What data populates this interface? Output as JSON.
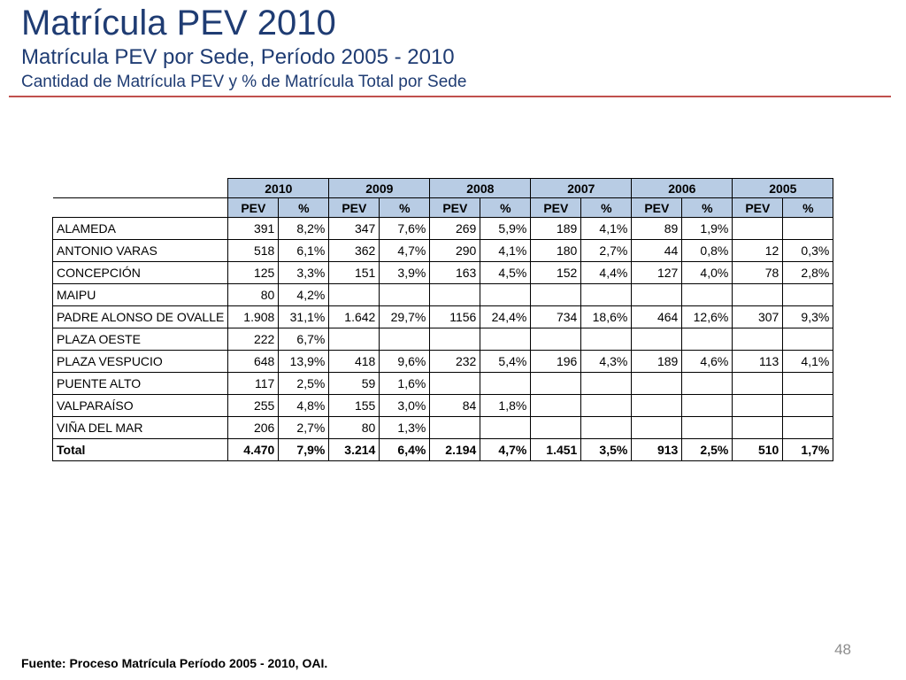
{
  "header": {
    "title": "Matrícula PEV 2010",
    "subtitle": "Matrícula PEV por Sede, Período 2005 - 2010",
    "subtitle2": "Cantidad de Matrícula PEV y % de Matrícula Total por Sede"
  },
  "table": {
    "years": [
      "2010",
      "2009",
      "2008",
      "2007",
      "2006",
      "2005"
    ],
    "subheaders": [
      "PEV",
      "%",
      "PEV",
      "%",
      "PEV",
      "%",
      "PEV",
      "%",
      "PEV",
      "%",
      "PEV",
      "%"
    ],
    "rows": [
      [
        "ALAMEDA",
        "391",
        "8,2%",
        "347",
        "7,6%",
        "269",
        "5,9%",
        "189",
        "4,1%",
        "89",
        "1,9%",
        "",
        ""
      ],
      [
        "ANTONIO VARAS",
        "518",
        "6,1%",
        "362",
        "4,7%",
        "290",
        "4,1%",
        "180",
        "2,7%",
        "44",
        "0,8%",
        "12",
        "0,3%"
      ],
      [
        "CONCEPCIÓN",
        "125",
        "3,3%",
        "151",
        "3,9%",
        "163",
        "4,5%",
        "152",
        "4,4%",
        "127",
        "4,0%",
        "78",
        "2,8%"
      ],
      [
        "MAIPU",
        "80",
        "4,2%",
        "",
        "",
        "",
        "",
        "",
        "",
        "",
        "",
        "",
        ""
      ],
      [
        "PADRE ALONSO DE OVALLE",
        "1.908",
        "31,1%",
        "1.642",
        "29,7%",
        "1156",
        "24,4%",
        "734",
        "18,6%",
        "464",
        "12,6%",
        "307",
        "9,3%"
      ],
      [
        "PLAZA OESTE",
        "222",
        "6,7%",
        "",
        "",
        "",
        "",
        "",
        "",
        "",
        "",
        "",
        ""
      ],
      [
        "PLAZA VESPUCIO",
        "648",
        "13,9%",
        "418",
        "9,6%",
        "232",
        "5,4%",
        "196",
        "4,3%",
        "189",
        "4,6%",
        "113",
        "4,1%"
      ],
      [
        "PUENTE ALTO",
        "117",
        "2,5%",
        "59",
        "1,6%",
        "",
        "",
        "",
        "",
        "",
        "",
        "",
        ""
      ],
      [
        "VALPARAÍSO",
        "255",
        "4,8%",
        "155",
        "3,0%",
        "84",
        "1,8%",
        "",
        "",
        "",
        "",
        "",
        ""
      ],
      [
        "VIÑA DEL MAR",
        "206",
        "2,7%",
        "80",
        "1,3%",
        "",
        "",
        "",
        "",
        "",
        "",
        "",
        ""
      ]
    ],
    "total": [
      "Total",
      "4.470",
      "7,9%",
      "3.214",
      "6,4%",
      "2.194",
      "4,7%",
      "1.451",
      "3,5%",
      "913",
      "2,5%",
      "510",
      "1,7%"
    ]
  },
  "page_number": "48",
  "footer": "Fuente: Proceso Matrícula Período 2005 - 2010, OAI.",
  "colors": {
    "title": "#1f3c73",
    "rule": "#c0504d",
    "header_fill": "#b8cce4"
  }
}
